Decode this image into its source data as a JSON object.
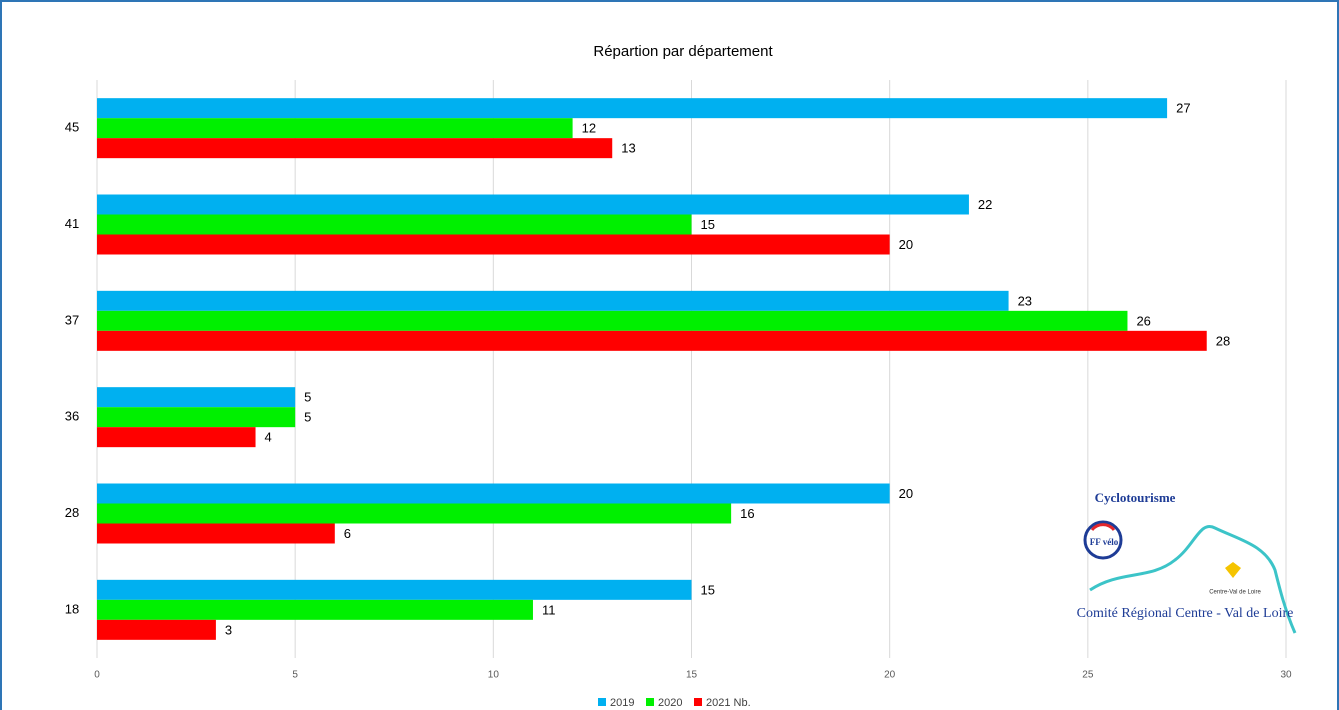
{
  "chart_data": {
    "type": "hbar",
    "title": "Répartion par département",
    "categories": [
      "45",
      "41",
      "37",
      "36",
      "28",
      "18"
    ],
    "series": [
      {
        "name": "2019",
        "color": "#00b0f0",
        "values": [
          27,
          22,
          23,
          5,
          20,
          15
        ]
      },
      {
        "name": "2020",
        "color": "#00f000",
        "values": [
          12,
          15,
          26,
          5,
          16,
          11
        ]
      },
      {
        "name": "2021 Nb.",
        "color": "#ff0000",
        "values": [
          13,
          20,
          28,
          4,
          6,
          3
        ]
      }
    ],
    "xlim": [
      0,
      30
    ],
    "xticks": [
      0,
      5,
      10,
      15,
      20,
      25,
      30
    ],
    "grid": true,
    "legend": "bottom"
  },
  "logo": {
    "top": "Cyclotourisme",
    "badge": "FF vélo",
    "region": "Centre-Val de Loire",
    "bottom": "Comité Régional Centre - Val de Loire"
  }
}
